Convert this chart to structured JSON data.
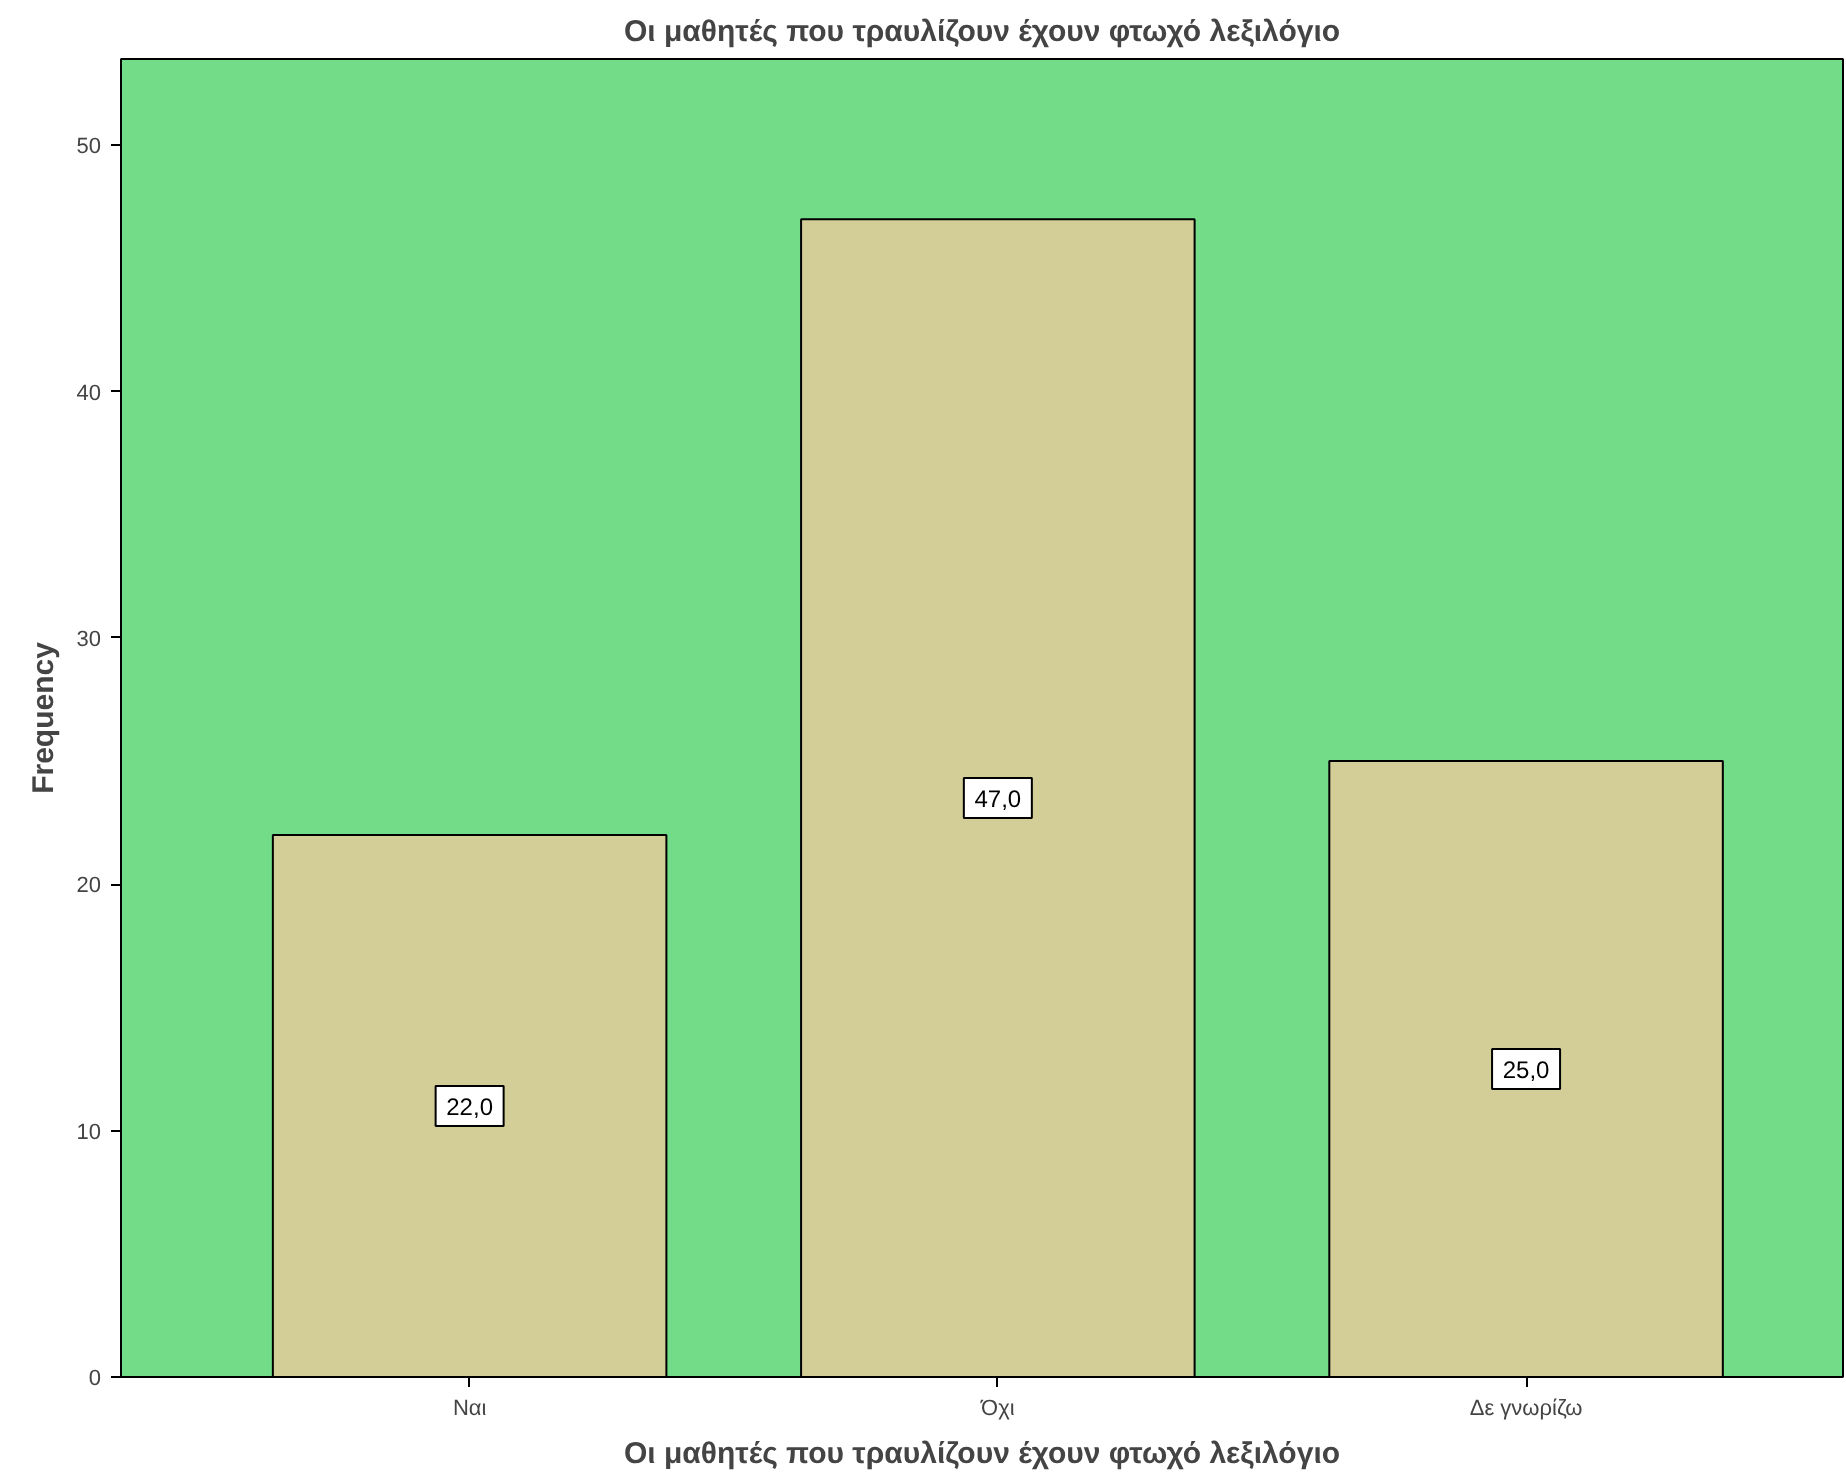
{
  "chart_data": {
    "type": "bar",
    "title": "Οι μαθητές που τραυλίζουν έχουν φτωχό λεξιλόγιο",
    "xlabel": "Οι μαθητές που τραυλίζουν έχουν φτωχό λεξιλόγιο",
    "ylabel": "Frequency",
    "categories": [
      "Ναι",
      "Όχι",
      "Δε γνωρίζω"
    ],
    "values": [
      22,
      47,
      25
    ],
    "value_labels": [
      "22,0",
      "47,0",
      "25,0"
    ],
    "color": "#d3ce97",
    "ylim": [
      0,
      53.5
    ],
    "yticks": [
      0,
      10,
      20,
      30,
      40,
      50
    ],
    "grid": false
  }
}
